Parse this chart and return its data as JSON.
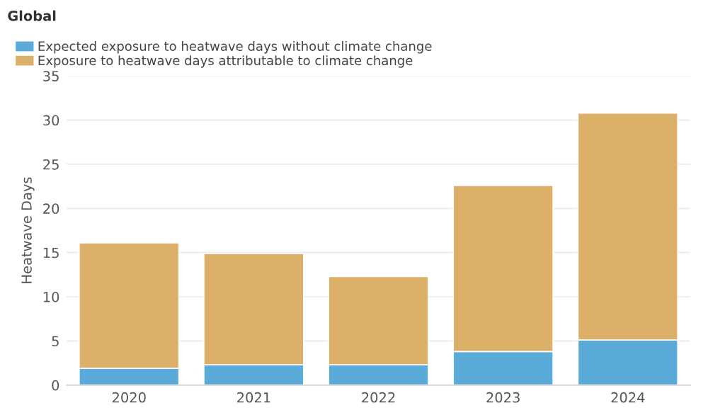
{
  "chart_data": {
    "type": "bar",
    "stacked": true,
    "ylabel": "Heatwave Days",
    "annotations": [
      "Global"
    ],
    "categories": [
      "2020",
      "2021",
      "2022",
      "2023",
      "2024"
    ],
    "series": [
      {
        "name": "Expected exposure to heatwave days without climate change",
        "color": "#5aabd9",
        "values": [
          1.9,
          2.3,
          2.3,
          3.8,
          5.1
        ]
      },
      {
        "name": "Exposure to heatwave days attributable to climate change",
        "color": "#dcb069",
        "values": [
          14.2,
          12.6,
          10.0,
          18.8,
          25.7
        ]
      }
    ],
    "ylim": [
      0,
      35
    ],
    "yticks": [
      0,
      5,
      10,
      15,
      20,
      25,
      30,
      35
    ],
    "grid": "y",
    "legend": "top left"
  }
}
